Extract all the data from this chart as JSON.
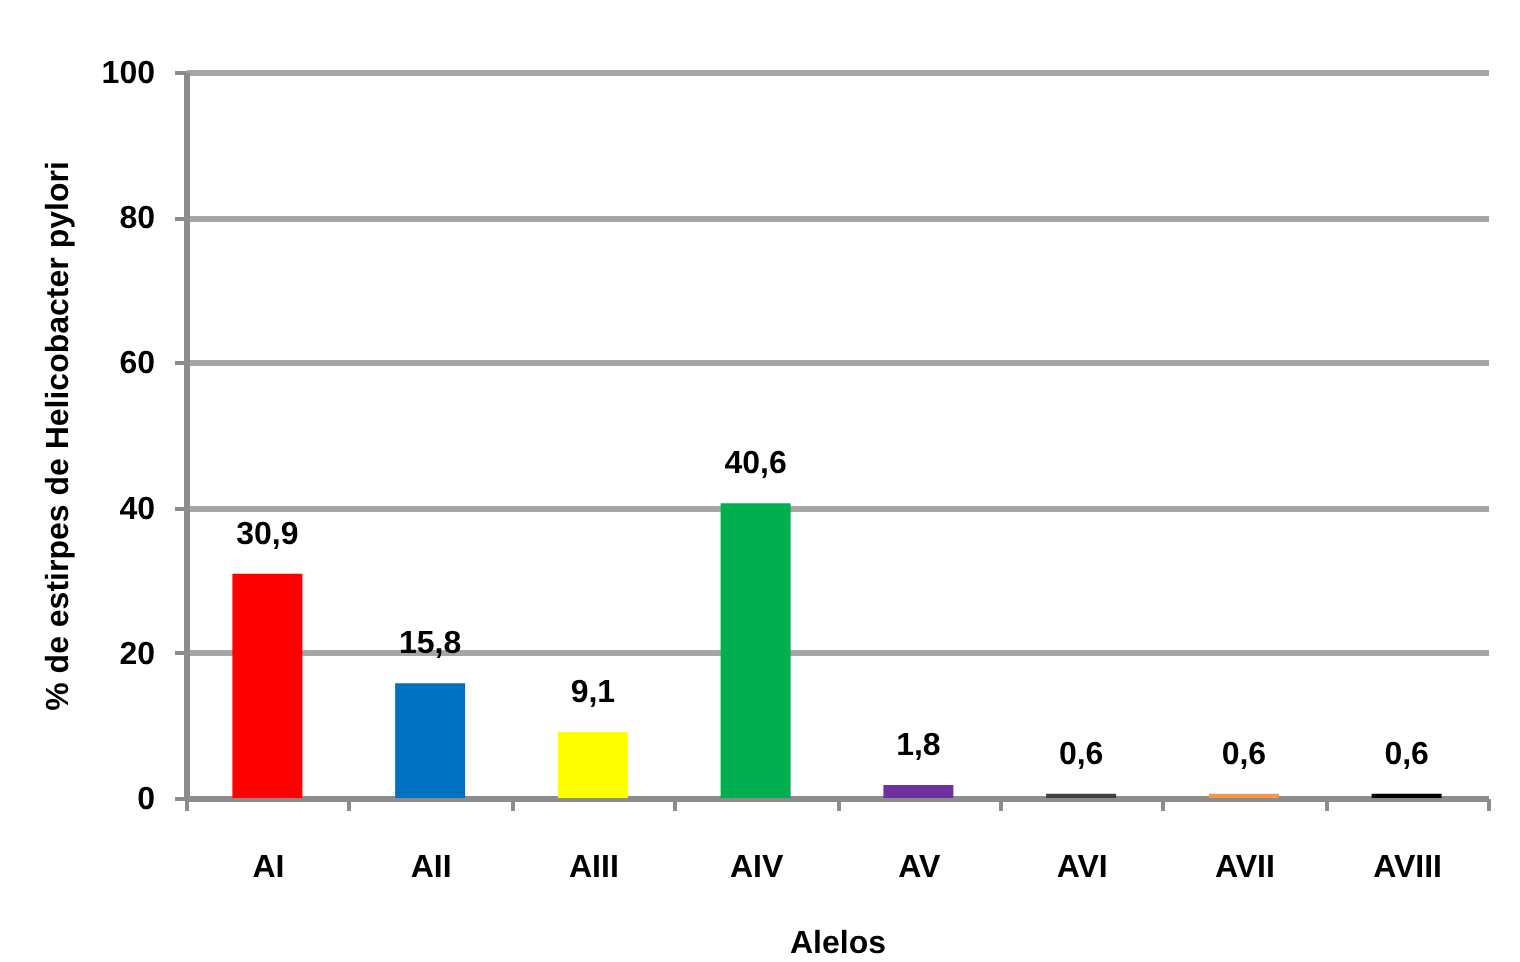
{
  "chart_data": {
    "type": "bar",
    "xlabel": "Alelos",
    "ylabel": "% de estirpes de Helicobacter pylori",
    "categories": [
      "AI",
      "AII",
      "AIII",
      "AIV",
      "AV",
      "AVI",
      "AVII",
      "AVIII"
    ],
    "values": [
      30.9,
      15.8,
      9.1,
      40.6,
      1.8,
      0.6,
      0.6,
      0.6
    ],
    "value_labels": [
      "30,9",
      "15,8",
      "9,1",
      "40,6",
      "1,8",
      "0,6",
      "0,6",
      "0,6"
    ],
    "colors": [
      "#ff0000",
      "#0070c0",
      "#ffff00",
      "#00b050",
      "#7030a0",
      "#404040",
      "#f79646",
      "#000000"
    ],
    "ylim": [
      0,
      100
    ],
    "yticks": [
      0,
      20,
      40,
      60,
      80,
      100
    ],
    "grid": "y"
  }
}
